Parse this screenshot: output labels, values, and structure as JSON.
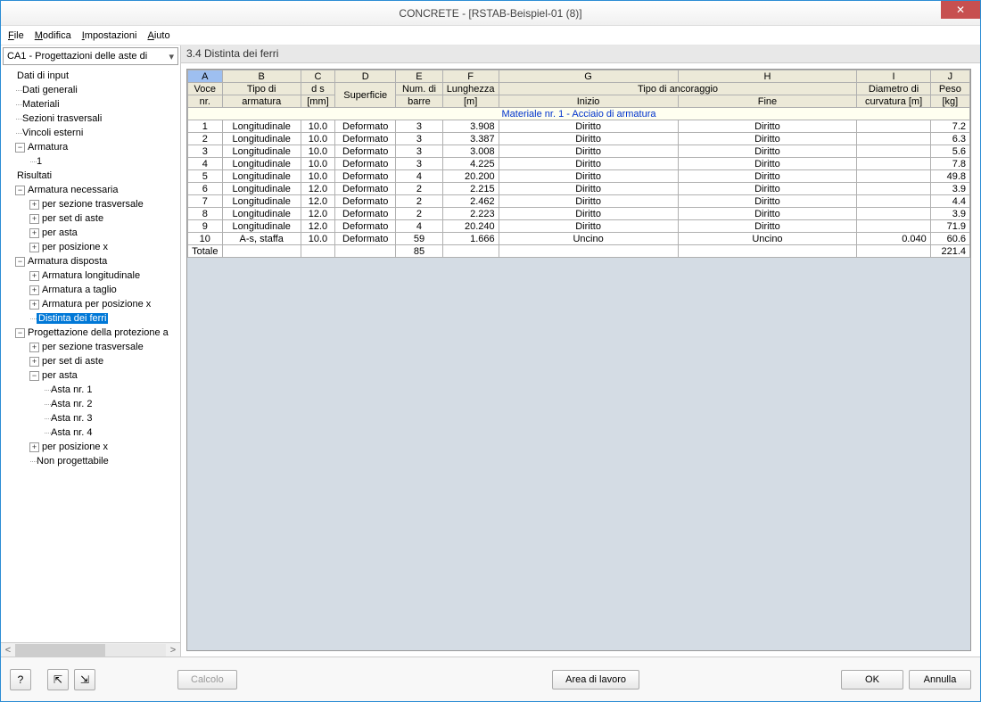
{
  "window": {
    "title": "CONCRETE - [RSTAB-Beispiel-01 (8)]"
  },
  "menu": {
    "file": "File",
    "modifica": "Modifica",
    "impostazioni": "Impostazioni",
    "aiuto": "Aiuto"
  },
  "dropdown": {
    "value": "CA1 - Progettazioni delle aste di"
  },
  "tree": {
    "t0": "Dati di input",
    "t1": "Dati generali",
    "t2": "Materiali",
    "t3": "Sezioni trasversali",
    "t4": "Vincoli esterni",
    "t5": "Armatura",
    "t6": "1",
    "t7": "Risultati",
    "t8": "Armatura necessaria",
    "t9": "per sezione trasversale",
    "t10": "per set di aste",
    "t11": "per asta",
    "t12": "per posizione x",
    "t13": "Armatura disposta",
    "t14": "Armatura longitudinale",
    "t15": "Armatura a taglio",
    "t16": "Armatura per posizione x",
    "t17": "Distinta dei ferri",
    "t18": "Progettazione della protezione a",
    "t19": "per sezione trasversale",
    "t20": "per set di aste",
    "t21": "per asta",
    "t22": "Asta nr. 1",
    "t23": "Asta nr. 2",
    "t24": "Asta nr. 3",
    "t25": "Asta nr. 4",
    "t26": "per posizione x",
    "t27": "Non progettabile"
  },
  "panel": {
    "title": "3.4 Distinta dei ferri"
  },
  "cols": {
    "A": "A",
    "B": "B",
    "C": "C",
    "D": "D",
    "E": "E",
    "F": "F",
    "G": "G",
    "H": "H",
    "I": "I",
    "J": "J",
    "voce": "Voce",
    "nr": "nr.",
    "tipo": "Tipo di",
    "arm": "armatura",
    "ds": "d s",
    "mm": "[mm]",
    "surf": "Superficie",
    "num": "Num. di",
    "barre": "barre",
    "lun": "Lunghezza",
    "m": "[m]",
    "anc": "Tipo di ancoraggio",
    "ini": "Inizio",
    "fin": "Fine",
    "dia": "Diametro di",
    "curv": "curvatura [m]",
    "peso": "Peso",
    "kg": "[kg]"
  },
  "material_row": "Materiale nr. 1   -   Acciaio di armatura",
  "rows": [
    {
      "n": "1",
      "tipo": "Longitudinale",
      "ds": "10.0",
      "s": "Deformato",
      "b": "3",
      "l": "3.908",
      "i": "Diritto",
      "f": "Diritto",
      "c": "",
      "p": "7.2"
    },
    {
      "n": "2",
      "tipo": "Longitudinale",
      "ds": "10.0",
      "s": "Deformato",
      "b": "3",
      "l": "3.387",
      "i": "Diritto",
      "f": "Diritto",
      "c": "",
      "p": "6.3"
    },
    {
      "n": "3",
      "tipo": "Longitudinale",
      "ds": "10.0",
      "s": "Deformato",
      "b": "3",
      "l": "3.008",
      "i": "Diritto",
      "f": "Diritto",
      "c": "",
      "p": "5.6"
    },
    {
      "n": "4",
      "tipo": "Longitudinale",
      "ds": "10.0",
      "s": "Deformato",
      "b": "3",
      "l": "4.225",
      "i": "Diritto",
      "f": "Diritto",
      "c": "",
      "p": "7.8"
    },
    {
      "n": "5",
      "tipo": "Longitudinale",
      "ds": "10.0",
      "s": "Deformato",
      "b": "4",
      "l": "20.200",
      "i": "Diritto",
      "f": "Diritto",
      "c": "",
      "p": "49.8"
    },
    {
      "n": "6",
      "tipo": "Longitudinale",
      "ds": "12.0",
      "s": "Deformato",
      "b": "2",
      "l": "2.215",
      "i": "Diritto",
      "f": "Diritto",
      "c": "",
      "p": "3.9"
    },
    {
      "n": "7",
      "tipo": "Longitudinale",
      "ds": "12.0",
      "s": "Deformato",
      "b": "2",
      "l": "2.462",
      "i": "Diritto",
      "f": "Diritto",
      "c": "",
      "p": "4.4"
    },
    {
      "n": "8",
      "tipo": "Longitudinale",
      "ds": "12.0",
      "s": "Deformato",
      "b": "2",
      "l": "2.223",
      "i": "Diritto",
      "f": "Diritto",
      "c": "",
      "p": "3.9"
    },
    {
      "n": "9",
      "tipo": "Longitudinale",
      "ds": "12.0",
      "s": "Deformato",
      "b": "4",
      "l": "20.240",
      "i": "Diritto",
      "f": "Diritto",
      "c": "",
      "p": "71.9"
    },
    {
      "n": "10",
      "tipo": "A-s, staffa",
      "ds": "10.0",
      "s": "Deformato",
      "b": "59",
      "l": "1.666",
      "i": "Uncino",
      "f": "Uncino",
      "c": "0.040",
      "p": "60.6"
    }
  ],
  "totale": {
    "label": "Totale",
    "b": "85",
    "p": "221.4"
  },
  "buttons": {
    "calcolo": "Calcolo",
    "area": "Area di lavoro",
    "ok": "OK",
    "annulla": "Annulla"
  }
}
